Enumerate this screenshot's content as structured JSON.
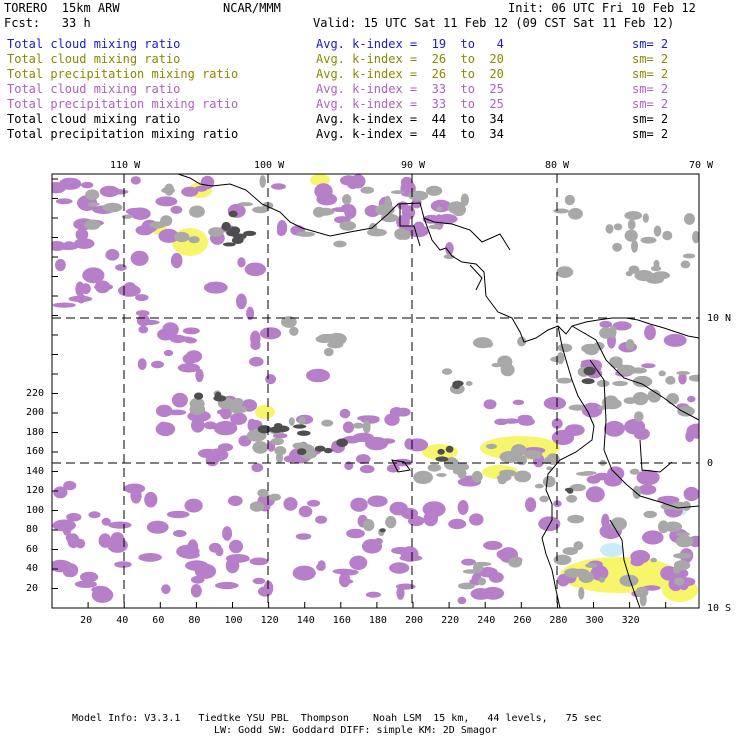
{
  "header": {
    "model": "TORERO  15km ARW",
    "org": "NCAR/MMM",
    "init": "Init: 06 UTC Fri 10 Feb 12",
    "fcst": "Fcst:   33 h",
    "valid": "Valid: 15 UTC Sat 11 Feb 12 (09 CST Sat 11 Feb 12)"
  },
  "legend": [
    {
      "field": "Total cloud mixing ratio",
      "kindex": "Avg. k-index =  19  to   4",
      "sm": "sm= 2",
      "color": "#1a1ad0"
    },
    {
      "field": "Total cloud mixing ratio",
      "kindex": "Avg. k-index =  26  to  20",
      "sm": "sm= 2",
      "color": "#8a8a00"
    },
    {
      "field": "Total precipitation mixing ratio",
      "kindex": "Avg. k-index =  26  to  20",
      "sm": "sm= 2",
      "color": "#8a8a00"
    },
    {
      "field": "Total cloud mixing ratio",
      "kindex": "Avg. k-index =  33  to  25",
      "sm": "sm= 2",
      "color": "#b060c0"
    },
    {
      "field": "Total precipitation mixing ratio",
      "kindex": "Avg. k-index =  33  to  25",
      "sm": "sm= 2",
      "color": "#b060c0"
    },
    {
      "field": "Total cloud mixing ratio",
      "kindex": "Avg. k-index =  44  to  34",
      "sm": "sm= 2",
      "color": "#000000"
    },
    {
      "field": "Total precipitation mixing ratio",
      "kindex": "Avg. k-index =  44  to  34",
      "sm": "sm= 2",
      "color": "#000000"
    }
  ],
  "map": {
    "lon_labels": [
      "110 W",
      "100 W",
      "90 W",
      "80 W",
      "70 W"
    ],
    "lat_labels": [
      "10 N",
      "0",
      "10 S"
    ],
    "x_ticks": [
      "20",
      "40",
      "60",
      "80",
      "100",
      "120",
      "140",
      "160",
      "180",
      "200",
      "220",
      "240",
      "260",
      "280",
      "300",
      "320"
    ],
    "y_ticks": [
      "20",
      "40",
      "60",
      "80",
      "100",
      "120",
      "140",
      "160",
      "180",
      "200",
      "220"
    ],
    "colors": {
      "purple": "#b77fc9",
      "yellow": "#f7f56a",
      "gray": "#a8a8a8",
      "dark": "#505050",
      "cyan": "#c8ecf8"
    }
  },
  "footer": {
    "line1": "Model Info: V3.3.1   Tiedtke YSU PBL  Thompson    Noah LSM  15 km,   44 levels,   75 sec",
    "line2": "LW: Godd SW: Goddard DIFF: simple KM: 2D Smagor"
  }
}
